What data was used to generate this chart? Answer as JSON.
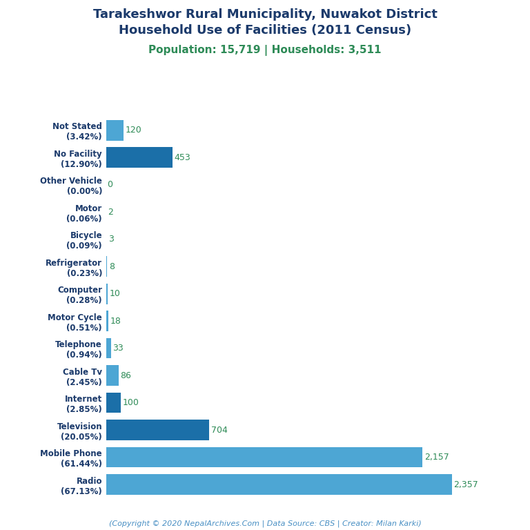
{
  "title_line1": "Tarakeshwor Rural Municipality, Nuwakot District",
  "title_line2": "Household Use of Facilities (2011 Census)",
  "subtitle": "Population: 15,719 | Households: 3,511",
  "copyright": "(Copyright © 2020 NepalArchives.Com | Data Source: CBS | Creator: Milan Karki)",
  "categories": [
    "Not Stated\n(3.42%)",
    "No Facility\n(12.90%)",
    "Other Vehicle\n(0.00%)",
    "Motor\n(0.06%)",
    "Bicycle\n(0.09%)",
    "Refrigerator\n(0.23%)",
    "Computer\n(0.28%)",
    "Motor Cycle\n(0.51%)",
    "Telephone\n(0.94%)",
    "Cable Tv\n(2.45%)",
    "Internet\n(2.85%)",
    "Television\n(20.05%)",
    "Mobile Phone\n(61.44%)",
    "Radio\n(67.13%)"
  ],
  "values": [
    120,
    453,
    0,
    2,
    3,
    8,
    10,
    18,
    33,
    86,
    100,
    704,
    2157,
    2357
  ],
  "bar_colors": [
    "#4DA6D4",
    "#1B6FA8",
    "#4DA6D4",
    "#4DA6D4",
    "#4DA6D4",
    "#4DA6D4",
    "#4DA6D4",
    "#4DA6D4",
    "#4DA6D4",
    "#4DA6D4",
    "#1B6FA8",
    "#1B6FA8",
    "#4DA6D4",
    "#4DA6D4"
  ],
  "title_color": "#1B3A6B",
  "subtitle_color": "#2E8B57",
  "value_color": "#2E8B57",
  "copyright_color": "#4A90C4",
  "background_color": "#FFFFFF",
  "xlim": [
    0,
    2600
  ]
}
